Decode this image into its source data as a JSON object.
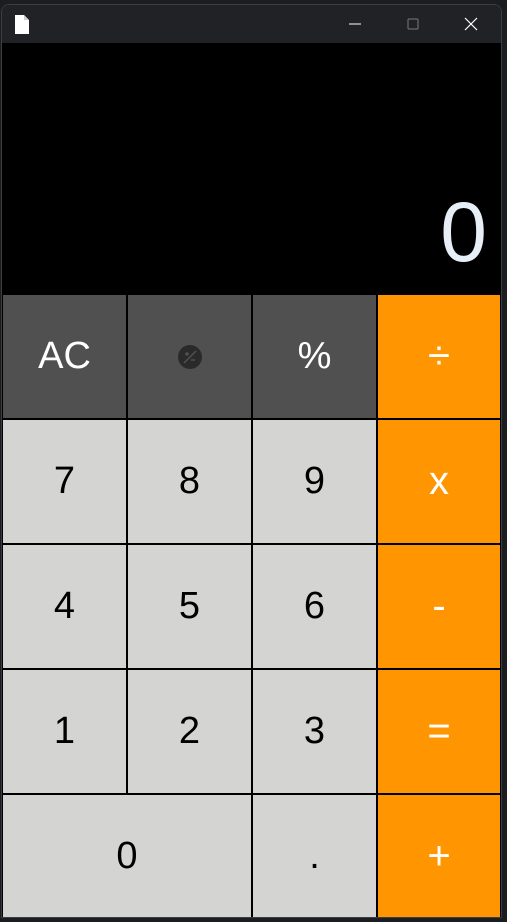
{
  "window": {
    "controls": {
      "minimize": "minimize",
      "maximize": "maximize",
      "close": "close"
    }
  },
  "display": {
    "value": "0"
  },
  "keys": {
    "ac": "AC",
    "percent": "%",
    "divide": "÷",
    "seven": "7",
    "eight": "8",
    "nine": "9",
    "multiply": "x",
    "four": "4",
    "five": "5",
    "six": "6",
    "minus": "-",
    "one": "1",
    "two": "2",
    "three": "3",
    "equals": "=",
    "zero": "0",
    "decimal": ".",
    "plus": "+"
  },
  "icons": {
    "app": "document-icon",
    "plus_minus": "plus-minus-icon"
  },
  "colors": {
    "function_key": "#505050",
    "number_key": "#d4d4d2",
    "operator_key": "#ff9500",
    "display_text": "#e8eef6"
  }
}
